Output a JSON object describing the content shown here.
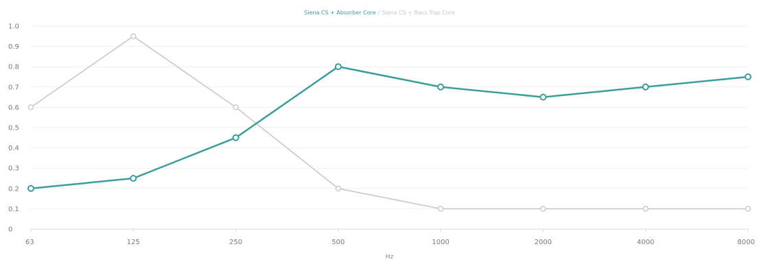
{
  "chart_data": {
    "type": "line",
    "title": "",
    "xlabel": "Hz",
    "ylabel": "",
    "categories": [
      "63",
      "125",
      "250",
      "500",
      "1000",
      "2000",
      "4000",
      "8000"
    ],
    "yticks": [
      "0",
      "0.1",
      "0.2",
      "0.3",
      "0.4",
      "0.5",
      "0.6",
      "0.7",
      "0.8",
      "0.9",
      "1.0"
    ],
    "ylim": [
      0,
      1.0
    ],
    "grid": true,
    "legend_position": "top-center",
    "series": [
      {
        "name": "Siena CS + Absorber Core",
        "color": "#3a9e9a",
        "values": [
          0.2,
          0.25,
          0.45,
          0.8,
          0.7,
          0.65,
          0.7,
          0.75
        ]
      },
      {
        "name": "Siena CS + Bass Trap Core",
        "color": "#c8c8c8",
        "values": [
          0.6,
          0.95,
          0.6,
          0.2,
          0.1,
          0.1,
          0.1,
          0.1
        ]
      }
    ]
  }
}
